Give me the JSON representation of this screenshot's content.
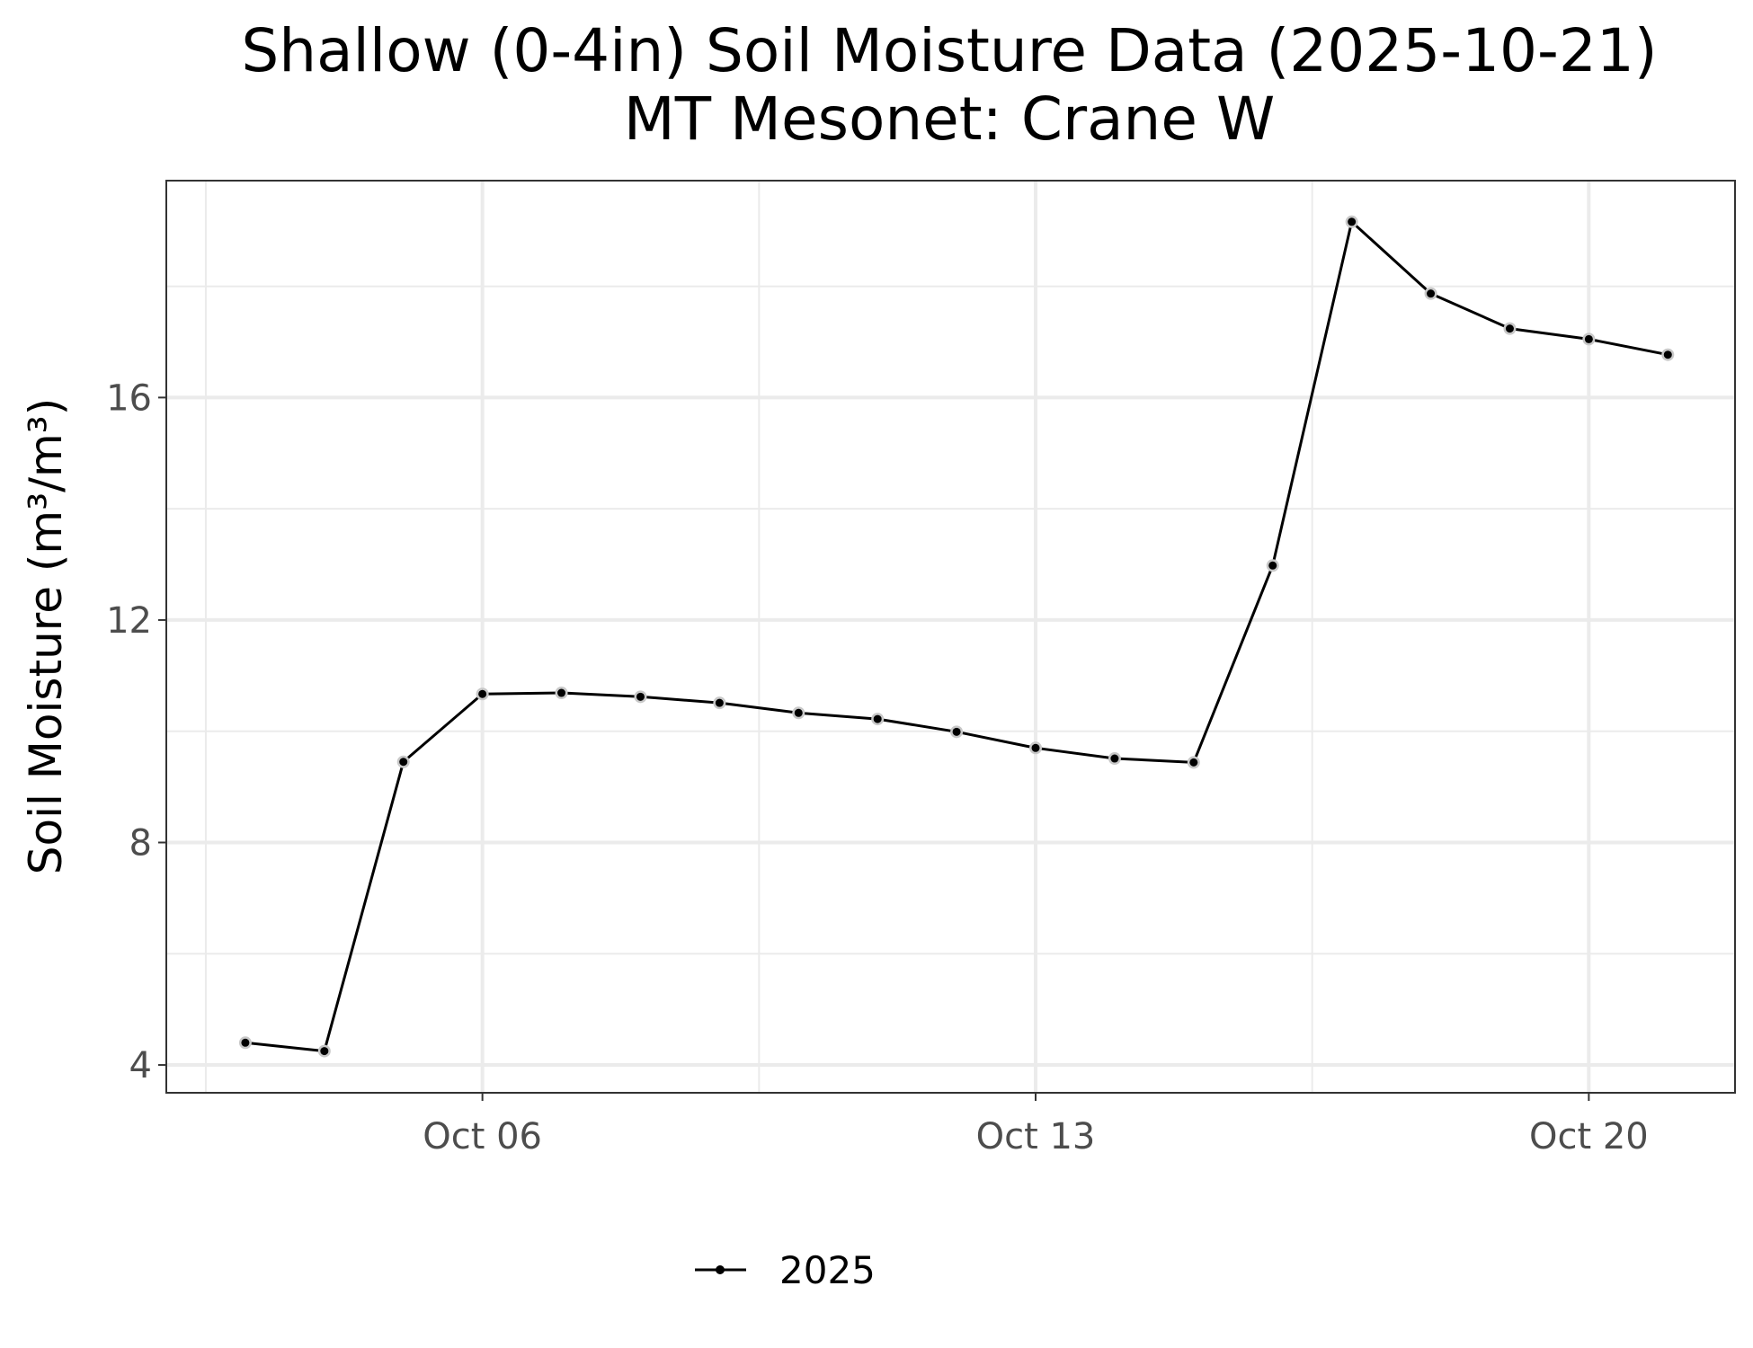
{
  "chart_data": {
    "type": "line",
    "title": "Shallow (0-4in) Soil Moisture Data (2025-10-21)",
    "subtitle": "MT Mesonet: Crane W",
    "xlabel": "",
    "ylabel": "Soil Moisture (m³/m³)",
    "x_axis": {
      "type": "date",
      "range": [
        "2025-10-02",
        "2025-10-21"
      ],
      "ticks": [
        {
          "date": "2025-10-06",
          "label": "Oct 06"
        },
        {
          "date": "2025-10-13",
          "label": "Oct 13"
        },
        {
          "date": "2025-10-20",
          "label": "Oct 20"
        }
      ]
    },
    "y_axis": {
      "range": [
        3.5,
        19.9
      ],
      "ticks": [
        4,
        8,
        12,
        16
      ],
      "tick_labels": [
        "4",
        "8",
        "12",
        "16"
      ]
    },
    "grid": true,
    "legend": {
      "position": "bottom",
      "entries": [
        "2025"
      ]
    },
    "colors": {
      "line": "#000000",
      "marker_ring": "#c8c8c8",
      "grid": "#ebebeb",
      "panel_border": "#333333"
    },
    "series": [
      {
        "name": "2025",
        "x": [
          "2025-10-03",
          "2025-10-04",
          "2025-10-05",
          "2025-10-06",
          "2025-10-07",
          "2025-10-08",
          "2025-10-09",
          "2025-10-10",
          "2025-10-11",
          "2025-10-12",
          "2025-10-13",
          "2025-10-14",
          "2025-10-15",
          "2025-10-16",
          "2025-10-17",
          "2025-10-18",
          "2025-10-19",
          "2025-10-20",
          "2025-10-21"
        ],
        "y": [
          4.4,
          4.25,
          9.45,
          10.67,
          10.69,
          10.62,
          10.51,
          10.33,
          10.22,
          9.99,
          9.7,
          9.51,
          9.44,
          12.98,
          19.16,
          17.87,
          17.24,
          17.05,
          16.77
        ]
      }
    ]
  }
}
